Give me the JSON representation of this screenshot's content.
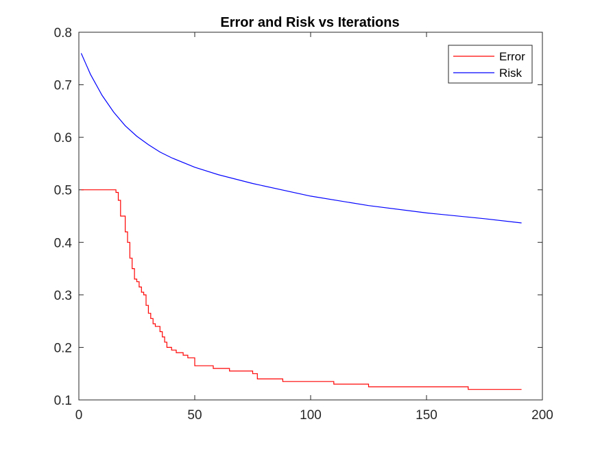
{
  "chart_data": {
    "type": "line",
    "title": "Error and Risk vs Iterations",
    "xlabel": "",
    "ylabel": "",
    "xlim": [
      0,
      200
    ],
    "ylim": [
      0.1,
      0.8
    ],
    "xticks": [
      0,
      50,
      100,
      150,
      200
    ],
    "yticks": [
      0.1,
      0.2,
      0.3,
      0.4,
      0.5,
      0.6,
      0.7,
      0.8
    ],
    "xtick_labels": [
      "0",
      "50",
      "100",
      "150",
      "200"
    ],
    "ytick_labels": [
      "0.1",
      "0.2",
      "0.3",
      "0.4",
      "0.5",
      "0.6",
      "0.7",
      "0.8"
    ],
    "grid": false,
    "legend": "top-right",
    "series": [
      {
        "name": "Error",
        "color": "#ff0000",
        "step": true,
        "x": [
          1,
          15,
          16,
          17,
          18,
          19,
          20,
          21,
          22,
          23,
          24,
          25,
          26,
          27,
          28,
          29,
          30,
          31,
          32,
          33,
          34,
          35,
          36,
          37,
          38,
          39,
          40,
          42,
          45,
          47,
          50,
          55,
          58,
          65,
          75,
          77,
          88,
          110,
          125,
          168,
          191
        ],
        "y": [
          0.5,
          0.5,
          0.495,
          0.48,
          0.45,
          0.45,
          0.42,
          0.4,
          0.37,
          0.35,
          0.33,
          0.325,
          0.315,
          0.305,
          0.3,
          0.28,
          0.265,
          0.255,
          0.245,
          0.24,
          0.24,
          0.23,
          0.22,
          0.21,
          0.2,
          0.2,
          0.195,
          0.19,
          0.185,
          0.18,
          0.165,
          0.165,
          0.16,
          0.155,
          0.15,
          0.14,
          0.135,
          0.13,
          0.125,
          0.12,
          0.12
        ]
      },
      {
        "name": "Risk",
        "color": "#0000ff",
        "step": false,
        "x": [
          1,
          5,
          10,
          15,
          20,
          25,
          30,
          35,
          40,
          50,
          60,
          75,
          100,
          125,
          150,
          175,
          191
        ],
        "y": [
          0.76,
          0.72,
          0.68,
          0.648,
          0.622,
          0.602,
          0.586,
          0.572,
          0.561,
          0.543,
          0.529,
          0.512,
          0.488,
          0.47,
          0.456,
          0.445,
          0.437
        ]
      }
    ]
  }
}
